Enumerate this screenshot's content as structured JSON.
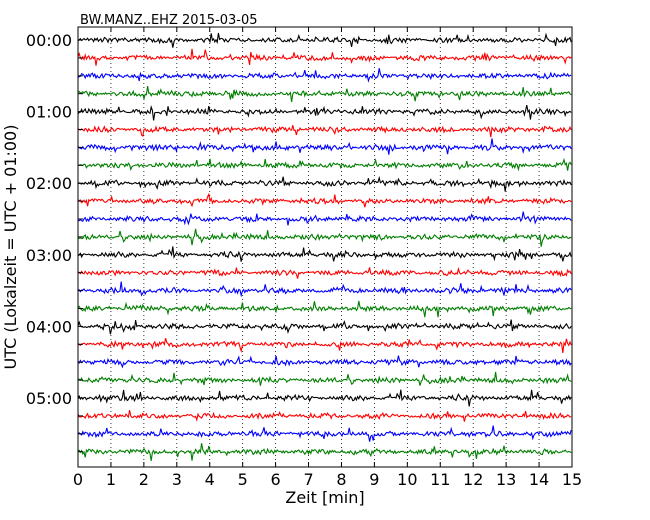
{
  "chart_data": {
    "type": "line",
    "title": "BW.MANZ..EHZ 2015-03-05",
    "xlabel": "Zeit  [min]",
    "ylabel": "UTC (Lokalzeit = UTC + 01:00)",
    "xlim": [
      0,
      15
    ],
    "x_ticks": [
      "0",
      "1",
      "2",
      "3",
      "4",
      "5",
      "6",
      "7",
      "8",
      "9",
      "10",
      "11",
      "12",
      "13",
      "14",
      "15"
    ],
    "y_tick_labels": [
      "00:00",
      "01:00",
      "02:00",
      "03:00",
      "04:00",
      "05:00"
    ],
    "rows_per_hour": 4,
    "row_count": 24,
    "trace_colors": [
      "#000000",
      "#ff0000",
      "#0000ff",
      "#007f00"
    ],
    "grid": "vertical dotted lines at each minute"
  }
}
